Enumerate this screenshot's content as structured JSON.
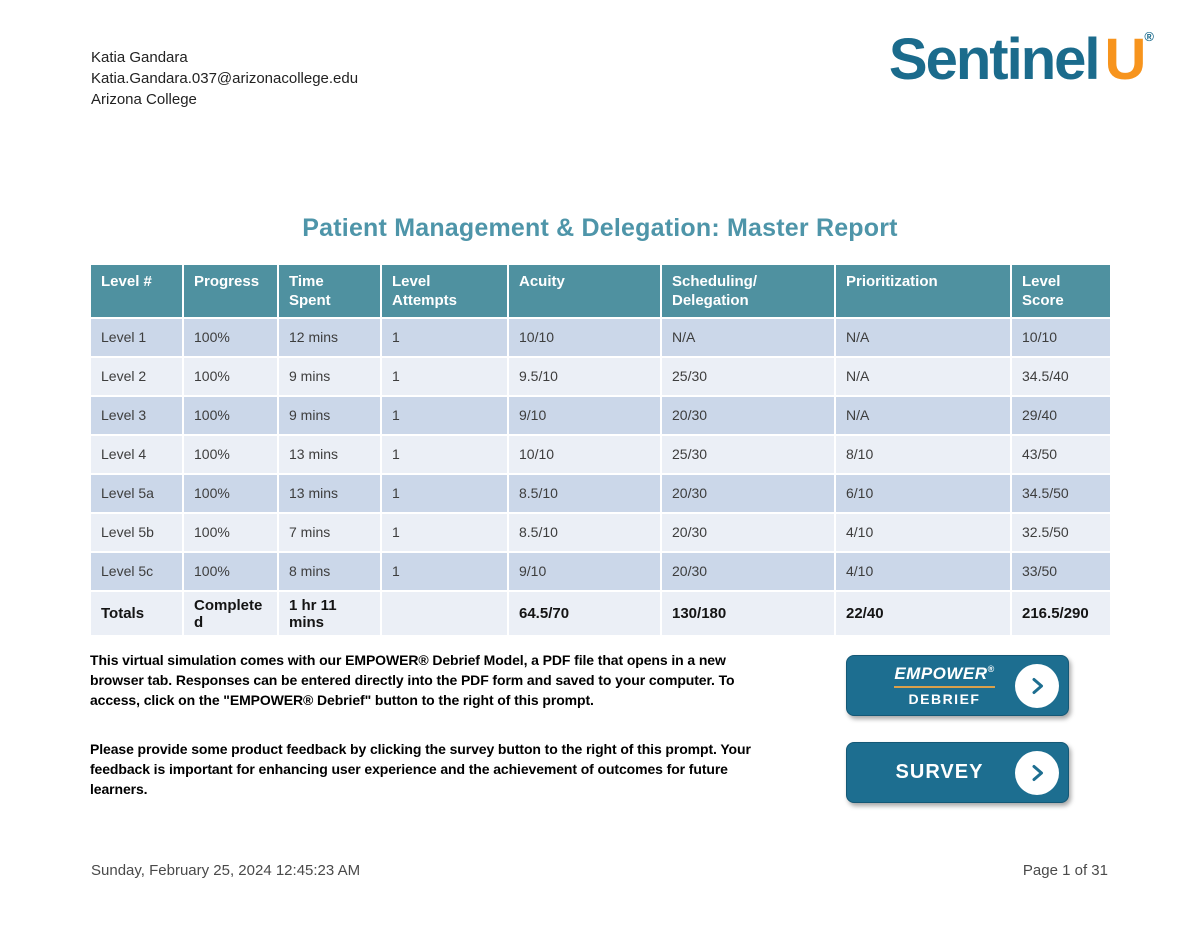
{
  "user": {
    "name": "Katia Gandara",
    "email": "Katia.Gandara.037@arizonacollege.edu",
    "institution": "Arizona College"
  },
  "logo": {
    "word": "Sentinel",
    "letter": "U",
    "registered": "®"
  },
  "title": "Patient Management & Delegation: Master Report",
  "table": {
    "headers": [
      "Level #",
      "Progress",
      "Time\nSpent",
      "Level\nAttempts",
      "Acuity",
      "Scheduling/\nDelegation",
      "Prioritization",
      "Level\nScore"
    ],
    "rows": [
      [
        "Level 1",
        "100%",
        "12 mins",
        "1",
        "10/10",
        "N/A",
        "N/A",
        "10/10"
      ],
      [
        "Level 2",
        "100%",
        "9 mins",
        "1",
        "9.5/10",
        "25/30",
        "N/A",
        "34.5/40"
      ],
      [
        "Level 3",
        "100%",
        "9 mins",
        "1",
        "9/10",
        "20/30",
        "N/A",
        "29/40"
      ],
      [
        "Level 4",
        "100%",
        "13 mins",
        "1",
        "10/10",
        "25/30",
        "8/10",
        "43/50"
      ],
      [
        "Level 5a",
        "100%",
        "13 mins",
        "1",
        "8.5/10",
        "20/30",
        "6/10",
        "34.5/50"
      ],
      [
        "Level 5b",
        "100%",
        "7 mins",
        "1",
        "8.5/10",
        "20/30",
        "4/10",
        "32.5/50"
      ],
      [
        "Level 5c",
        "100%",
        "8 mins",
        "1",
        "9/10",
        "20/30",
        "4/10",
        "33/50"
      ]
    ],
    "totals": [
      "Totals",
      "Completed",
      "1 hr 11 mins",
      "",
      "64.5/70",
      "130/180",
      "22/40",
      "216.5/290"
    ]
  },
  "prompts": {
    "empower": "This virtual simulation comes with our EMPOWER® Debrief Model, a PDF file that opens in a new browser tab. Responses can be entered directly into the PDF form and saved to your computer. To access, click on the \"EMPOWER® Debrief\" button to the right of this prompt.",
    "survey": "Please provide some product feedback by clicking the survey button to the right of this prompt. Your feedback is important for enhancing user experience and the achievement of outcomes for future learners."
  },
  "buttons": {
    "empower_line1": "EMPOWER",
    "empower_registered": "®",
    "empower_line2": "DEBRIEF",
    "survey_label": "SURVEY",
    "chevron_icon": "chevron-right"
  },
  "footer": {
    "timestamp": "Sunday, February 25, 2024 12:45:23 AM",
    "page": "Page 1 of 31"
  },
  "colors": {
    "brand_teal": "#1B6B8C",
    "brand_orange": "#F7941D",
    "title_teal": "#4E95A9",
    "table_header_teal": "#4F91A0",
    "row_dark": "#CBD7E9",
    "row_light": "#EBEFF6",
    "button_teal": "#1D6E90",
    "empower_underline": "#D9A04B"
  }
}
